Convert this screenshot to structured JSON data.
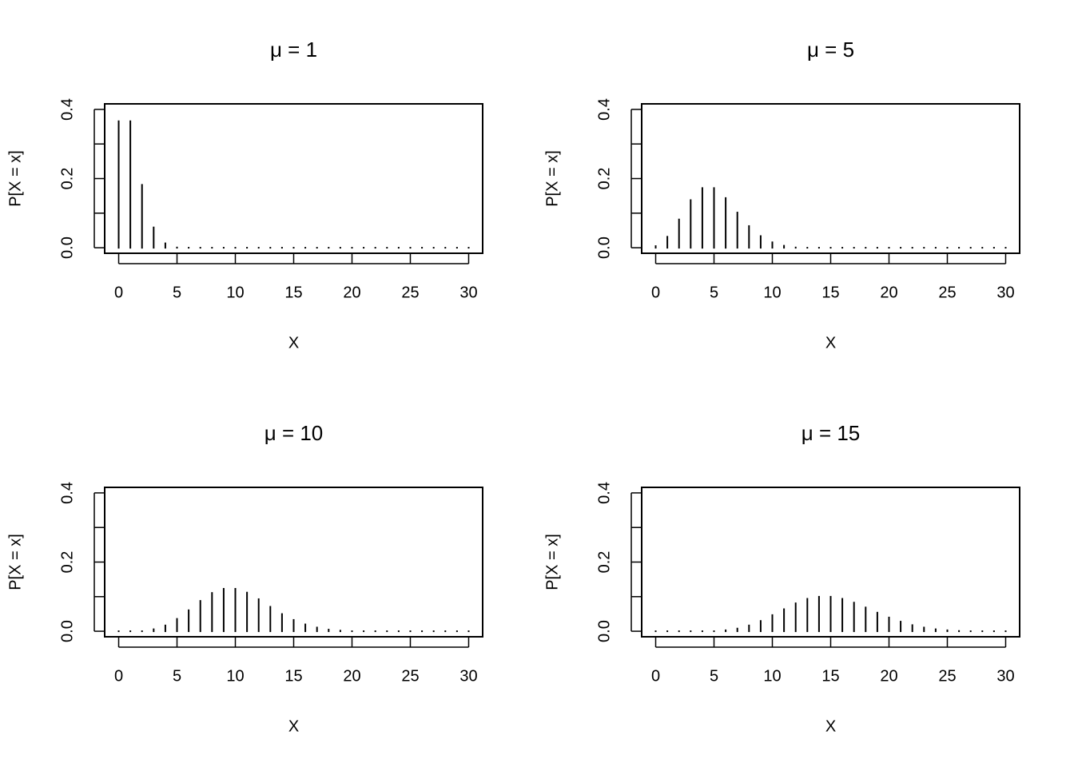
{
  "chart_data": [
    {
      "type": "stem",
      "title": "μ = 1",
      "xlabel": "X",
      "ylabel": "P[X = x]",
      "color": "#000000",
      "x": [
        0,
        1,
        2,
        3,
        4,
        5,
        6,
        7,
        8,
        9,
        10,
        11,
        12,
        13,
        14,
        15,
        16,
        17,
        18,
        19,
        20,
        21,
        22,
        23,
        24,
        25,
        26,
        27,
        28,
        29,
        30
      ],
      "values": [
        0.368,
        0.368,
        0.184,
        0.061,
        0.015,
        0.003,
        0.001,
        0,
        0,
        0,
        0,
        0,
        0,
        0,
        0,
        0,
        0,
        0,
        0,
        0,
        0,
        0,
        0,
        0,
        0,
        0,
        0,
        0,
        0,
        0,
        0
      ],
      "xlim": [
        -1.2,
        31.2
      ],
      "ylim": [
        -0.016,
        0.416
      ],
      "xticks": [
        0,
        5,
        10,
        15,
        20,
        25,
        30
      ],
      "yticks": [
        {
          "value": 0,
          "label": "0.0"
        },
        {
          "value": 0.1,
          "label": null
        },
        0.2,
        {
          "value": 0.3,
          "label": null
        },
        0.4
      ]
    },
    {
      "type": "stem",
      "title": "μ = 5",
      "xlabel": "X",
      "ylabel": "P[X = x]",
      "color": "#000000",
      "x": [
        0,
        1,
        2,
        3,
        4,
        5,
        6,
        7,
        8,
        9,
        10,
        11,
        12,
        13,
        14,
        15,
        16,
        17,
        18,
        19,
        20,
        21,
        22,
        23,
        24,
        25,
        26,
        27,
        28,
        29,
        30
      ],
      "values": [
        0.007,
        0.034,
        0.084,
        0.14,
        0.175,
        0.175,
        0.146,
        0.104,
        0.065,
        0.036,
        0.018,
        0.008,
        0.003,
        0.001,
        0,
        0,
        0,
        0,
        0,
        0,
        0,
        0,
        0,
        0,
        0,
        0,
        0,
        0,
        0,
        0,
        0
      ],
      "xlim": [
        -1.2,
        31.2
      ],
      "ylim": [
        -0.016,
        0.416
      ],
      "xticks": [
        0,
        5,
        10,
        15,
        20,
        25,
        30
      ],
      "yticks": [
        {
          "value": 0,
          "label": "0.0"
        },
        {
          "value": 0.1,
          "label": null
        },
        0.2,
        {
          "value": 0.3,
          "label": null
        },
        0.4
      ]
    },
    {
      "type": "stem",
      "title": "μ = 10",
      "xlabel": "X",
      "ylabel": "P[X = x]",
      "color": "#000000",
      "x": [
        0,
        1,
        2,
        3,
        4,
        5,
        6,
        7,
        8,
        9,
        10,
        11,
        12,
        13,
        14,
        15,
        16,
        17,
        18,
        19,
        20,
        21,
        22,
        23,
        24,
        25,
        26,
        27,
        28,
        29,
        30
      ],
      "values": [
        0,
        0,
        0.002,
        0.008,
        0.019,
        0.038,
        0.063,
        0.09,
        0.113,
        0.125,
        0.125,
        0.114,
        0.095,
        0.073,
        0.052,
        0.035,
        0.022,
        0.013,
        0.007,
        0.004,
        0.002,
        0.001,
        0,
        0,
        0,
        0,
        0,
        0,
        0,
        0,
        0
      ],
      "xlim": [
        -1.2,
        31.2
      ],
      "ylim": [
        -0.016,
        0.416
      ],
      "xticks": [
        0,
        5,
        10,
        15,
        20,
        25,
        30
      ],
      "yticks": [
        {
          "value": 0,
          "label": "0.0"
        },
        {
          "value": 0.1,
          "label": null
        },
        0.2,
        {
          "value": 0.3,
          "label": null
        },
        0.4
      ]
    },
    {
      "type": "stem",
      "title": "μ = 15",
      "xlabel": "X",
      "ylabel": "P[X = x]",
      "color": "#000000",
      "x": [
        0,
        1,
        2,
        3,
        4,
        5,
        6,
        7,
        8,
        9,
        10,
        11,
        12,
        13,
        14,
        15,
        16,
        17,
        18,
        19,
        20,
        21,
        22,
        23,
        24,
        25,
        26,
        27,
        28,
        29,
        30
      ],
      "values": [
        0,
        0,
        0,
        0,
        0.001,
        0.002,
        0.005,
        0.01,
        0.019,
        0.032,
        0.049,
        0.066,
        0.083,
        0.096,
        0.102,
        0.102,
        0.096,
        0.085,
        0.071,
        0.056,
        0.042,
        0.03,
        0.02,
        0.013,
        0.008,
        0.005,
        0.003,
        0.002,
        0.001,
        0,
        0
      ],
      "xlim": [
        -1.2,
        31.2
      ],
      "ylim": [
        -0.016,
        0.416
      ],
      "xticks": [
        0,
        5,
        10,
        15,
        20,
        25,
        30
      ],
      "yticks": [
        {
          "value": 0,
          "label": "0.0"
        },
        {
          "value": 0.1,
          "label": null
        },
        0.2,
        {
          "value": 0.3,
          "label": null
        },
        0.4
      ]
    }
  ]
}
